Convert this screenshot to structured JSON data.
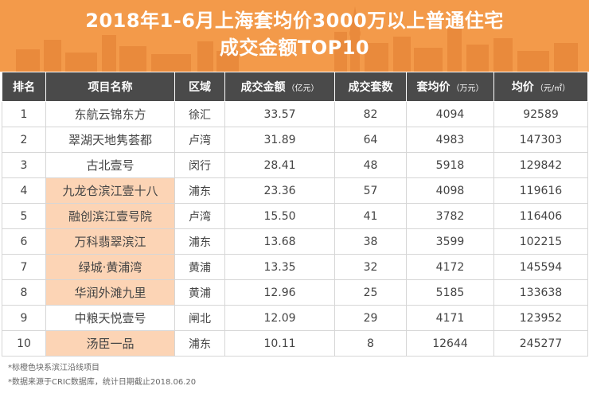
{
  "banner": {
    "title_line1": "2018年1-6月上海套均价3000万以上普通住宅",
    "title_line2": "成交金额TOP10"
  },
  "colors": {
    "banner_orange": "#f39a4a",
    "header_dark": "#4a4a4a",
    "highlight_peach": "#fcd4b5"
  },
  "chart_data": {
    "type": "table",
    "title": "2018年1-6月上海套均价3000万以上普通住宅成交金额TOP10",
    "columns": [
      {
        "label": "排名",
        "unit": ""
      },
      {
        "label": "项目名称",
        "unit": ""
      },
      {
        "label": "区域",
        "unit": ""
      },
      {
        "label": "成交金额",
        "unit": "（亿元）"
      },
      {
        "label": "成交套数",
        "unit": ""
      },
      {
        "label": "套均价",
        "unit": "（万元）"
      },
      {
        "label": "均价",
        "unit": "（元/㎡）"
      }
    ],
    "rows": [
      {
        "rank": "1",
        "name": "东航云锦东方",
        "district": "徐汇",
        "amount": "33.57",
        "units": "82",
        "avg_unit_price": "4094",
        "avg_price": "92589",
        "riverside": false
      },
      {
        "rank": "2",
        "name": "翠湖天地隽荟都",
        "district": "卢湾",
        "amount": "31.89",
        "units": "64",
        "avg_unit_price": "4983",
        "avg_price": "147303",
        "riverside": false
      },
      {
        "rank": "3",
        "name": "古北壹号",
        "district": "闵行",
        "amount": "28.41",
        "units": "48",
        "avg_unit_price": "5918",
        "avg_price": "129842",
        "riverside": false
      },
      {
        "rank": "4",
        "name": "九龙仓滨江壹十八",
        "district": "浦东",
        "amount": "23.36",
        "units": "57",
        "avg_unit_price": "4098",
        "avg_price": "119616",
        "riverside": true
      },
      {
        "rank": "5",
        "name": "融创滨江壹号院",
        "district": "卢湾",
        "amount": "15.50",
        "units": "41",
        "avg_unit_price": "3782",
        "avg_price": "116406",
        "riverside": true
      },
      {
        "rank": "6",
        "name": "万科翡翠滨江",
        "district": "浦东",
        "amount": "13.68",
        "units": "38",
        "avg_unit_price": "3599",
        "avg_price": "102215",
        "riverside": true
      },
      {
        "rank": "7",
        "name": "绿城·黄浦湾",
        "district": "黄浦",
        "amount": "13.35",
        "units": "32",
        "avg_unit_price": "4172",
        "avg_price": "145594",
        "riverside": true
      },
      {
        "rank": "8",
        "name": "华润外滩九里",
        "district": "黄浦",
        "amount": "12.96",
        "units": "25",
        "avg_unit_price": "5185",
        "avg_price": "133638",
        "riverside": true
      },
      {
        "rank": "9",
        "name": "中粮天悦壹号",
        "district": "闸北",
        "amount": "12.09",
        "units": "29",
        "avg_unit_price": "4171",
        "avg_price": "123952",
        "riverside": false
      },
      {
        "rank": "10",
        "name": "汤臣一品",
        "district": "浦东",
        "amount": "10.11",
        "units": "8",
        "avg_unit_price": "12644",
        "avg_price": "245277",
        "riverside": true
      }
    ]
  },
  "notes": [
    "*标橙色块系滨江沿线项目",
    "*数据来源于CRIC数据库，统计日期截止2018.06.20"
  ]
}
